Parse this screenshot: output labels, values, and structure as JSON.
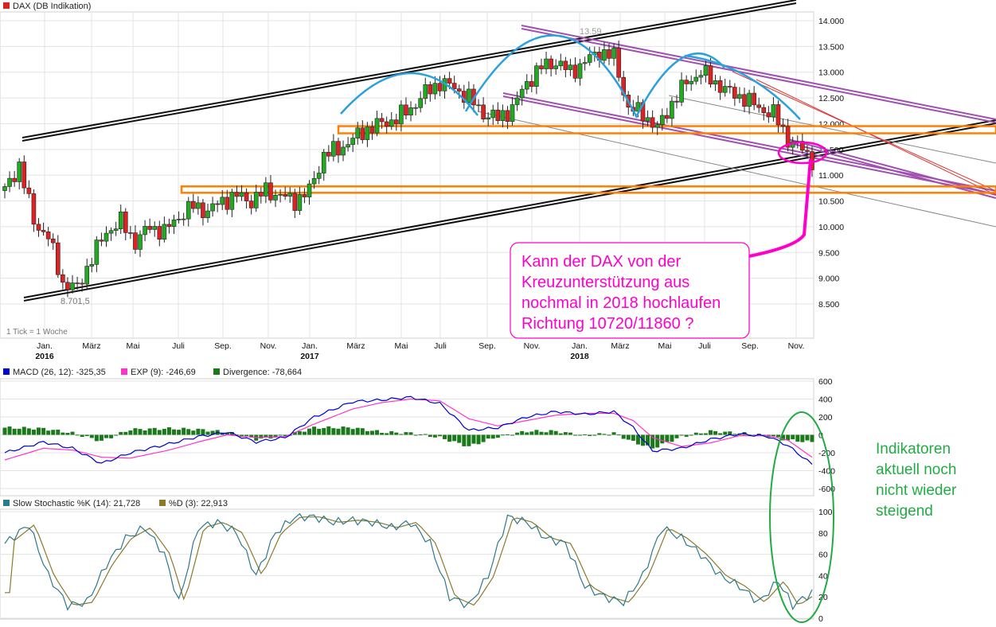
{
  "chart_data": [
    {
      "type": "candlestick",
      "title": "DAX (DB Indikation)",
      "x_tick_labels": [
        {
          "label": "Jan.",
          "sub": "2016"
        },
        {
          "label": "März",
          "sub": ""
        },
        {
          "label": "Mai",
          "sub": ""
        },
        {
          "label": "Juli",
          "sub": ""
        },
        {
          "label": "Sep.",
          "sub": ""
        },
        {
          "label": "Nov.",
          "sub": ""
        },
        {
          "label": "Jan.",
          "sub": "2017"
        },
        {
          "label": "März",
          "sub": ""
        },
        {
          "label": "Mai",
          "sub": ""
        },
        {
          "label": "Juli",
          "sub": ""
        },
        {
          "label": "Sep.",
          "sub": ""
        },
        {
          "label": "Nov.",
          "sub": ""
        },
        {
          "label": "Jan.",
          "sub": "2018"
        },
        {
          "label": "März",
          "sub": ""
        },
        {
          "label": "Mai",
          "sub": ""
        },
        {
          "label": "Juli",
          "sub": ""
        },
        {
          "label": "Sep.",
          "sub": ""
        },
        {
          "label": "Nov.",
          "sub": ""
        }
      ],
      "y_tick_labels": [
        "14.000",
        "13.500",
        "13.000",
        "12.500",
        "12.000",
        "11.500",
        "11.000",
        "10.500",
        "10.000",
        "9.500",
        "9.000",
        "8.500"
      ],
      "ylim": [
        8100,
        14300
      ],
      "close_path": [
        [
          0,
          10700
        ],
        [
          3,
          11200
        ],
        [
          6,
          10100
        ],
        [
          9,
          9800
        ],
        [
          12,
          8900
        ],
        [
          15,
          8800
        ],
        [
          18,
          9400
        ],
        [
          21,
          9900
        ],
        [
          24,
          10100
        ],
        [
          27,
          9700
        ],
        [
          30,
          10000
        ],
        [
          33,
          9900
        ],
        [
          36,
          10200
        ],
        [
          39,
          10400
        ],
        [
          42,
          10300
        ],
        [
          45,
          10500
        ],
        [
          48,
          10600
        ],
        [
          51,
          10500
        ],
        [
          54,
          10700
        ],
        [
          57,
          10600
        ],
        [
          60,
          10500
        ],
        [
          63,
          10700
        ],
        [
          66,
          11400
        ],
        [
          69,
          11500
        ],
        [
          72,
          11700
        ],
        [
          75,
          11900
        ],
        [
          78,
          12000
        ],
        [
          81,
          12100
        ],
        [
          84,
          12300
        ],
        [
          87,
          12600
        ],
        [
          90,
          12800
        ],
        [
          93,
          12700
        ],
        [
          96,
          12500
        ],
        [
          99,
          12200
        ],
        [
          102,
          12100
        ],
        [
          105,
          12300
        ],
        [
          108,
          12800
        ],
        [
          111,
          13100
        ],
        [
          114,
          13200
        ],
        [
          117,
          13000
        ],
        [
          120,
          13200
        ],
        [
          123,
          13400
        ],
        [
          126,
          13300
        ],
        [
          129,
          12300
        ],
        [
          132,
          12200
        ],
        [
          135,
          11900
        ],
        [
          138,
          12400
        ],
        [
          141,
          12800
        ],
        [
          144,
          13000
        ],
        [
          147,
          12800
        ],
        [
          150,
          12600
        ],
        [
          153,
          12500
        ],
        [
          156,
          12300
        ],
        [
          159,
          12200
        ],
        [
          162,
          11700
        ],
        [
          165,
          11500
        ],
        [
          167,
          11300
        ]
      ],
      "annotations": {
        "top_label": "13.59",
        "low_label": "8.701,5",
        "tick_note": "1 Tick = 1 Woche",
        "callout_lines": [
          "Kann der DAX von der",
          "Kreuzunterstützung aus",
          "nochmal in 2018 hochlaufen",
          "Richtung 10720/11860 ?"
        ]
      },
      "support_levels": [
        11860,
        10720
      ],
      "colors": {
        "up": "#22aa22",
        "down": "#dd2222",
        "channel": "#111111",
        "down_channel": "#a050b0",
        "arc": "#2aa0dd",
        "support": "#ff8000",
        "callout": "#ff00cc"
      }
    },
    {
      "type": "line",
      "legend": [
        {
          "name": "MACD (26, 12): -325,35",
          "color": "#0000cc"
        },
        {
          "name": "EXP (9): -246,69",
          "color": "#ff33cc"
        },
        {
          "name": "Divergence: -78,664",
          "color": "#1a7a1a"
        }
      ],
      "y_tick_labels": [
        "600",
        "400",
        "200",
        "0",
        "-200",
        "-400",
        "-600"
      ],
      "ylim": [
        -700,
        700
      ]
    },
    {
      "type": "line",
      "legend": [
        {
          "name": "Slow Stochastic %K (14): 21,728",
          "color": "#2a7a8a"
        },
        {
          "name": "%D (3): 22,913",
          "color": "#8a7a2a"
        }
      ],
      "y_tick_labels": [
        "100",
        "80",
        "60",
        "40",
        "20",
        "0"
      ],
      "ylim": [
        0,
        110
      ]
    }
  ],
  "side_note": {
    "lines": [
      "Indikatoren",
      "aktuell noch",
      "nicht wieder",
      "steigend"
    ],
    "color": "#22aa44"
  }
}
